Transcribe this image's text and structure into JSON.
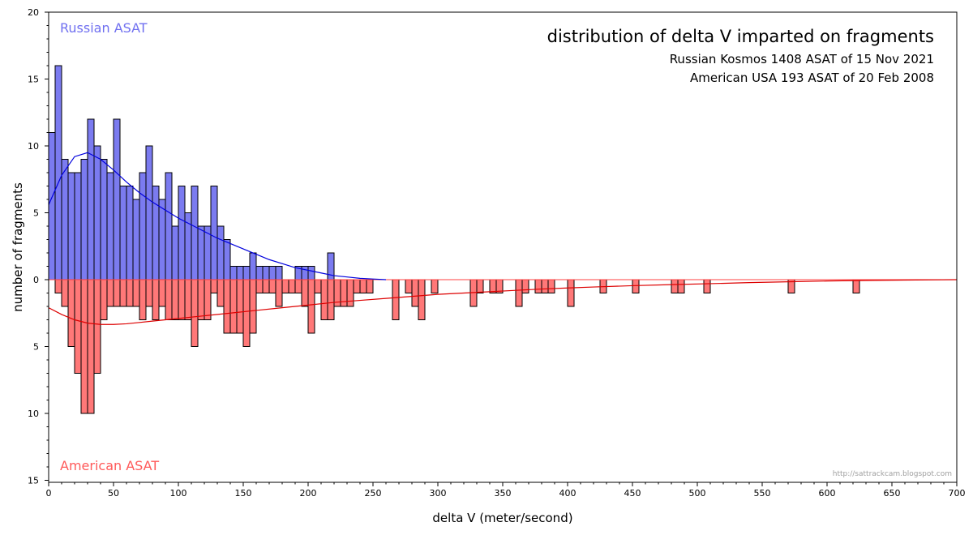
{
  "chart_data": {
    "type": "bar",
    "title": "distribution of delta V imparted on fragments",
    "subtitles": [
      "Russian Kosmos 1408 ASAT of 15 Nov 2021",
      "American USA 193 ASAT of 20 Feb 2008"
    ],
    "xlabel": "delta V (meter/second)",
    "ylabel": "number of fragments",
    "xlim": [
      0,
      700
    ],
    "ylim_top": [
      0,
      20
    ],
    "ylim_bottom": [
      0,
      15
    ],
    "bin_width": 5,
    "xticks": [
      "0",
      "50",
      "100",
      "150",
      "200",
      "250",
      "300",
      "350",
      "400",
      "450",
      "500",
      "550",
      "600",
      "650",
      "700"
    ],
    "yticks_top": [
      "20",
      "15",
      "10",
      "5"
    ],
    "yticks_bottom": [
      "5",
      "10",
      "15"
    ],
    "zero_label": "0",
    "series": [
      {
        "name": "Russian ASAT",
        "direction": "up",
        "color": "#7b7bf0",
        "curve_color": "#0000dd",
        "bins_start": [
          0,
          5,
          10,
          15,
          20,
          25,
          30,
          35,
          40,
          45,
          50,
          55,
          60,
          65,
          70,
          75,
          80,
          85,
          90,
          95,
          100,
          105,
          110,
          115,
          120,
          125,
          130,
          135,
          140,
          145,
          150,
          155,
          160,
          165,
          170,
          175,
          180,
          185,
          190,
          195,
          200,
          205,
          210,
          215
        ],
        "values": [
          11,
          16,
          9,
          8,
          8,
          9,
          12,
          10,
          9,
          8,
          12,
          7,
          7,
          6,
          8,
          10,
          7,
          6,
          8,
          4,
          7,
          5,
          7,
          4,
          4,
          7,
          4,
          3,
          1,
          1,
          1,
          2,
          1,
          1,
          1,
          1,
          0,
          0,
          1,
          1,
          1,
          0,
          0,
          2
        ],
        "curve": [
          [
            0,
            5.6
          ],
          [
            10,
            7.8
          ],
          [
            20,
            9.2
          ],
          [
            30,
            9.5
          ],
          [
            40,
            9.0
          ],
          [
            50,
            8.2
          ],
          [
            60,
            7.3
          ],
          [
            70,
            6.5
          ],
          [
            80,
            5.8
          ],
          [
            90,
            5.2
          ],
          [
            100,
            4.6
          ],
          [
            110,
            4.1
          ],
          [
            120,
            3.6
          ],
          [
            130,
            3.1
          ],
          [
            140,
            2.7
          ],
          [
            150,
            2.3
          ],
          [
            160,
            1.9
          ],
          [
            170,
            1.5
          ],
          [
            180,
            1.2
          ],
          [
            190,
            0.9
          ],
          [
            200,
            0.7
          ],
          [
            210,
            0.5
          ],
          [
            220,
            0.3
          ],
          [
            230,
            0.2
          ],
          [
            240,
            0.1
          ],
          [
            250,
            0.05
          ],
          [
            260,
            0.0
          ]
        ]
      },
      {
        "name": "American ASAT",
        "direction": "down",
        "color": "#ff7878",
        "curve_color": "#dd0000",
        "bins_start": [
          5,
          10,
          15,
          20,
          25,
          30,
          35,
          40,
          45,
          50,
          55,
          60,
          65,
          70,
          75,
          80,
          85,
          90,
          95,
          100,
          105,
          110,
          115,
          120,
          125,
          130,
          135,
          140,
          145,
          150,
          155,
          160,
          165,
          170,
          175,
          180,
          185,
          190,
          195,
          200,
          205,
          210,
          215,
          220,
          225,
          230,
          235,
          240,
          245,
          265,
          275,
          280,
          285,
          295,
          325,
          330,
          340,
          345,
          360,
          365,
          375,
          380,
          385,
          400,
          425,
          450,
          480,
          485,
          505,
          570,
          620
        ],
        "values": [
          1,
          2,
          5,
          7,
          10,
          10,
          7,
          3,
          2,
          2,
          2,
          2,
          2,
          3,
          2,
          3,
          2,
          3,
          3,
          3,
          3,
          5,
          3,
          3,
          1,
          2,
          4,
          4,
          4,
          5,
          4,
          1,
          1,
          1,
          2,
          1,
          1,
          1,
          2,
          4,
          1,
          3,
          3,
          2,
          2,
          2,
          1,
          1,
          1,
          3,
          1,
          2,
          3,
          1,
          2,
          1,
          1,
          1,
          2,
          1,
          1,
          1,
          1,
          2,
          1,
          1,
          1,
          1,
          1,
          1,
          1
        ],
        "curve": [
          [
            0,
            2.1
          ],
          [
            10,
            2.6
          ],
          [
            20,
            3.0
          ],
          [
            30,
            3.25
          ],
          [
            40,
            3.35
          ],
          [
            50,
            3.35
          ],
          [
            60,
            3.3
          ],
          [
            70,
            3.2
          ],
          [
            80,
            3.1
          ],
          [
            90,
            3.0
          ],
          [
            100,
            2.9
          ],
          [
            120,
            2.7
          ],
          [
            140,
            2.5
          ],
          [
            160,
            2.3
          ],
          [
            180,
            2.1
          ],
          [
            200,
            1.9
          ],
          [
            220,
            1.7
          ],
          [
            240,
            1.55
          ],
          [
            260,
            1.4
          ],
          [
            280,
            1.25
          ],
          [
            300,
            1.1
          ],
          [
            320,
            1.0
          ],
          [
            340,
            0.9
          ],
          [
            360,
            0.8
          ],
          [
            380,
            0.7
          ],
          [
            400,
            0.62
          ],
          [
            420,
            0.55
          ],
          [
            450,
            0.45
          ],
          [
            480,
            0.37
          ],
          [
            510,
            0.3
          ],
          [
            540,
            0.22
          ],
          [
            570,
            0.16
          ],
          [
            600,
            0.1
          ],
          [
            630,
            0.06
          ],
          [
            660,
            0.03
          ],
          [
            700,
            0.0
          ]
        ]
      }
    ],
    "labels": {
      "top": "Russian ASAT",
      "bottom": "American ASAT",
      "credit": "http://sattrackcam.blogspot.com"
    }
  }
}
